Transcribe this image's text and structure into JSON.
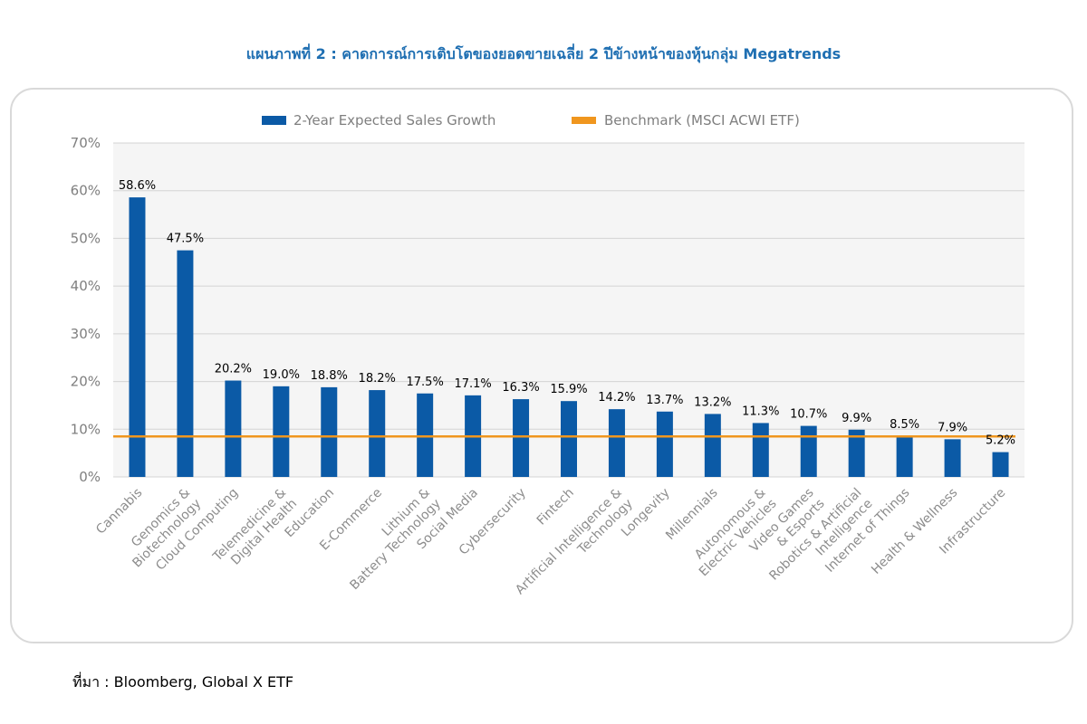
{
  "page": {
    "title": "แผนภาพที่ 2 : คาดการณ์การเติบโตของยอดขายเฉลี่ย 2 ปีข้างหน้าของหุ้นกลุ่ม Megatrends",
    "source": "ที่มา : Bloomberg, Global X ETF"
  },
  "chart_data": {
    "type": "bar",
    "title": "แผนภาพที่ 2 : คาดการณ์การเติบโตของยอดขายเฉลี่ย 2 ปีข้างหน้าของหุ้นกลุ่ม Megatrends",
    "xlabel": "",
    "ylabel": "",
    "ylim": [
      0,
      70
    ],
    "y_ticks": [
      "0%",
      "10%",
      "20%",
      "30%",
      "40%",
      "50%",
      "60%",
      "70%"
    ],
    "y_tick_values": [
      0,
      10,
      20,
      30,
      40,
      50,
      60,
      70
    ],
    "grid": true,
    "legend_position": "top",
    "categories": [
      [
        "Cannabis"
      ],
      [
        "Genomics &",
        "Biotechnology"
      ],
      [
        "Cloud Computing"
      ],
      [
        "Telemedicine &",
        "Digital Health"
      ],
      [
        "Education"
      ],
      [
        "E-Commerce"
      ],
      [
        "Lithium &",
        "Battery Technology"
      ],
      [
        "Social Media"
      ],
      [
        "Cybersecurity"
      ],
      [
        "Fintech"
      ],
      [
        "Artificial Intelligence &",
        "Technology"
      ],
      [
        "Longevity"
      ],
      [
        "Millennials"
      ],
      [
        "Autonomous &",
        "Electric Vehicles"
      ],
      [
        "Video Games",
        "& Esports"
      ],
      [
        "Robotics & Artificial",
        "Intelligence"
      ],
      [
        "Internet of Things"
      ],
      [
        "Health & Wellness"
      ],
      [
        "Infrastructure"
      ]
    ],
    "series": [
      {
        "name": "2-Year Expected Sales Growth",
        "color": "#0b5aa6",
        "values": [
          58.6,
          47.5,
          20.2,
          19.0,
          18.8,
          18.2,
          17.5,
          17.1,
          16.3,
          15.9,
          14.2,
          13.7,
          13.2,
          11.3,
          10.7,
          9.9,
          8.5,
          7.9,
          5.2
        ],
        "labels": [
          "58.6%",
          "47.5%",
          "20.2%",
          "19.0%",
          "18.8%",
          "18.2%",
          "17.5%",
          "17.1%",
          "16.3%",
          "15.9%",
          "14.2%",
          "13.7%",
          "13.2%",
          "11.3%",
          "10.7%",
          "9.9%",
          "8.5%",
          "7.9%",
          "5.2%"
        ]
      }
    ],
    "benchmark": {
      "name": "Benchmark (MSCI ACWI ETF)",
      "color": "#f0961e",
      "value": 8.5
    }
  }
}
